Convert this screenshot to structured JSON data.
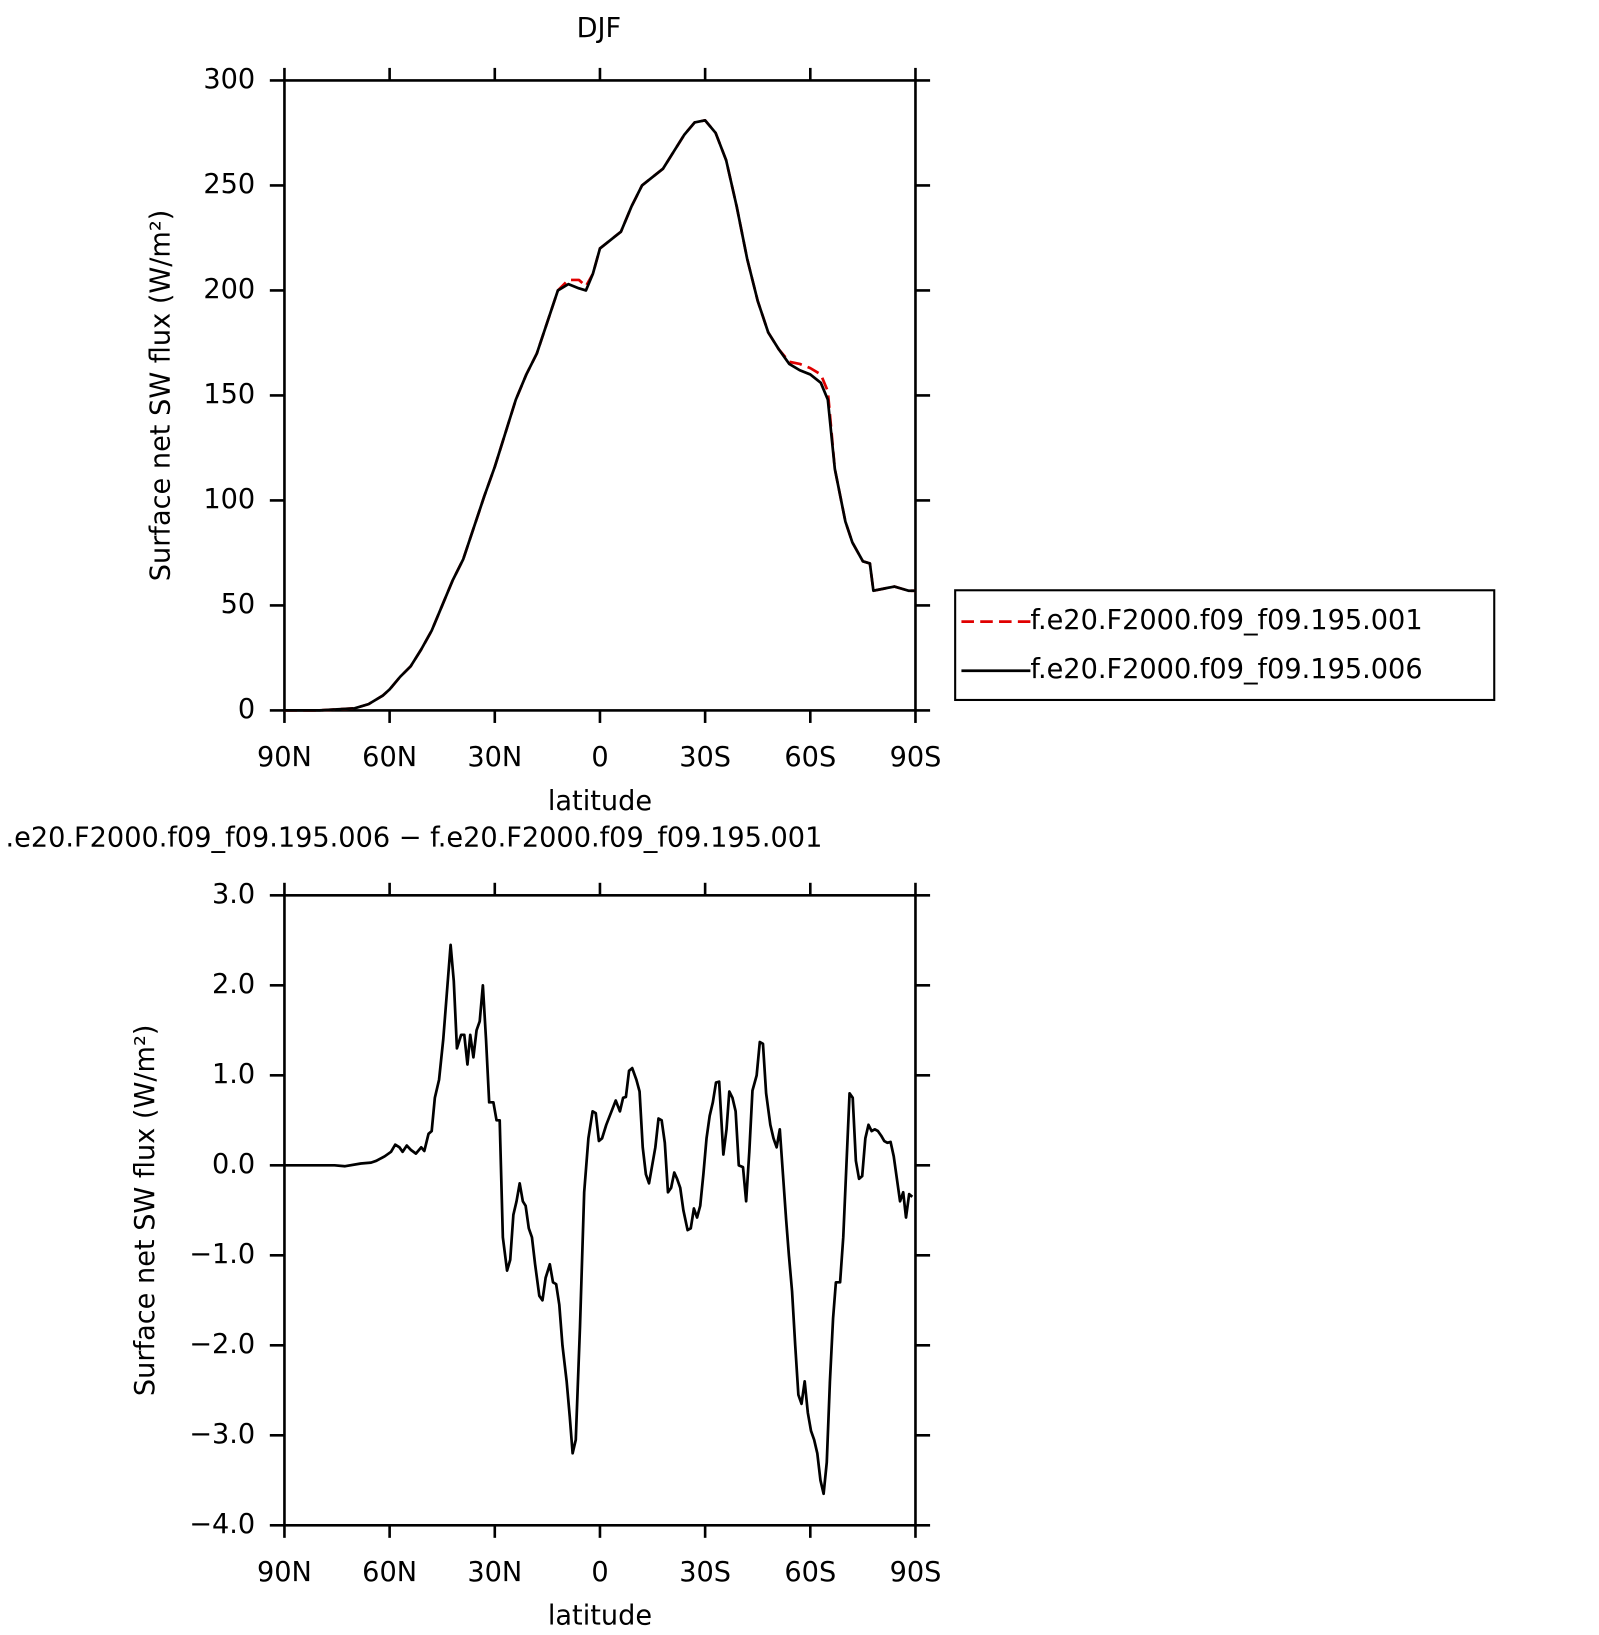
{
  "chart_data": [
    {
      "type": "line",
      "title": "DJF",
      "xlabel": "latitude",
      "ylabel": "Surface net SW flux (W/m²)",
      "xlim": [
        90,
        -90
      ],
      "xticks": [
        {
          "value": 90,
          "label": "90N"
        },
        {
          "value": 60,
          "label": "60N"
        },
        {
          "value": 30,
          "label": "30N"
        },
        0,
        {
          "value": -30,
          "label": "30S"
        },
        {
          "value": -60,
          "label": "60S"
        },
        {
          "value": -90,
          "label": "90S"
        }
      ],
      "ylim": [
        0,
        300
      ],
      "yticks": [
        0,
        50,
        100,
        150,
        200,
        250,
        300
      ],
      "legend": "outside-right",
      "x": [
        90,
        80,
        70,
        66,
        62,
        60,
        57,
        54,
        51,
        48,
        45,
        42,
        39,
        36,
        33,
        30,
        27,
        24,
        21,
        18,
        15,
        12,
        9,
        6,
        4,
        2,
        0,
        -3,
        -6,
        -9,
        -12,
        -15,
        -18,
        -21,
        -24,
        -27,
        -30,
        -33,
        -36,
        -39,
        -42,
        -45,
        -48,
        -51,
        -54,
        -57,
        -60,
        -63,
        -65,
        -67,
        -70,
        -72,
        -75,
        -77,
        -78,
        -81,
        -84,
        -86,
        -88,
        -90
      ],
      "series": [
        {
          "name": "f.e20.F2000.f09_f09.195.001",
          "color": "#e00000",
          "dash": true,
          "values": [
            0,
            0,
            1,
            3,
            7,
            10,
            16,
            21,
            29,
            38,
            50,
            62,
            72,
            87,
            102,
            116,
            132,
            148,
            160,
            170,
            185,
            200,
            205,
            205,
            202,
            208,
            220,
            224,
            228,
            240,
            250,
            254,
            258,
            266,
            274,
            280,
            281,
            275,
            262,
            240,
            215,
            195,
            180,
            172,
            166,
            165,
            163,
            160,
            152,
            115,
            90,
            80,
            71,
            70,
            57,
            58,
            59,
            58,
            57,
            57
          ]
        },
        {
          "name": "f.e20.F2000.f09_f09.195.006",
          "color": "#000000",
          "dash": false,
          "values": [
            0,
            0,
            1,
            3,
            7,
            10,
            16,
            21,
            29,
            38,
            50,
            62,
            72,
            87,
            102,
            116,
            132,
            148,
            160,
            170,
            185,
            200,
            203,
            201,
            200,
            208,
            220,
            224,
            228,
            240,
            250,
            254,
            258,
            266,
            274,
            280,
            281,
            275,
            262,
            240,
            215,
            195,
            180,
            172,
            165,
            162,
            160,
            156,
            148,
            115,
            90,
            80,
            71,
            70,
            57,
            58,
            59,
            58,
            57,
            57
          ]
        }
      ]
    },
    {
      "type": "line",
      "title": ".e20.F2000.f09_f09.195.006 − f.e20.F2000.f09_f09.195.001",
      "xlabel": "latitude",
      "ylabel": "Surface net SW flux (W/m²)",
      "xlim": [
        90,
        -90
      ],
      "xticks": [
        {
          "value": 90,
          "label": "90N"
        },
        {
          "value": 60,
          "label": "60N"
        },
        {
          "value": 30,
          "label": "30N"
        },
        0,
        {
          "value": -30,
          "label": "30S"
        },
        {
          "value": -60,
          "label": "60S"
        },
        {
          "value": -90,
          "label": "90S"
        }
      ],
      "ylim": [
        -4,
        3
      ],
      "yticks": [
        {
          "value": -4,
          "label": "−4.0"
        },
        {
          "value": -3,
          "label": "−3.0"
        },
        {
          "value": -2,
          "label": "−2.0"
        },
        {
          "value": -1,
          "label": "−1.0"
        },
        {
          "value": 0,
          "label": "0.0"
        },
        {
          "value": 1,
          "label": "1.0"
        },
        {
          "value": 2,
          "label": "2.0"
        },
        {
          "value": 3,
          "label": "3.0"
        }
      ],
      "x": [
        90.0,
        75.7,
        72.7,
        68.2,
        65.3,
        63.8,
        61.4,
        59.6,
        58.4,
        57.2,
        56.3,
        55.1,
        53.9,
        52.5,
        51.0,
        50.1,
        48.9,
        48.0,
        47.1,
        45.9,
        44.7,
        43.5,
        42.6,
        41.7,
        40.8,
        39.6,
        38.7,
        37.8,
        37.0,
        36.1,
        35.2,
        34.3,
        33.4,
        32.5,
        31.6,
        30.4,
        29.5,
        28.6,
        27.7,
        26.5,
        25.6,
        24.7,
        23.8,
        22.9,
        22.0,
        21.2,
        20.3,
        19.4,
        18.5,
        17.3,
        16.4,
        15.5,
        14.3,
        13.4,
        12.5,
        11.6,
        10.7,
        9.5,
        8.6,
        7.8,
        6.9,
        5.7,
        4.5,
        3.3,
        2.1,
        1.2,
        0.3,
        -0.6,
        -1.8,
        -3.3,
        -4.5,
        -5.7,
        -6.6,
        -7.4,
        -8.3,
        -9.2,
        -10.4,
        -11.3,
        -12.2,
        -13.1,
        -14.0,
        -14.9,
        -15.8,
        -16.7,
        -17.6,
        -18.5,
        -19.4,
        -20.3,
        -21.2,
        -22.0,
        -22.9,
        -23.8,
        -25.0,
        -25.9,
        -26.8,
        -27.7,
        -28.6,
        -29.5,
        -30.4,
        -31.3,
        -32.2,
        -33.1,
        -34.0,
        -35.2,
        -36.1,
        -36.9,
        -37.8,
        -38.7,
        -39.6,
        -40.8,
        -41.7,
        -42.6,
        -43.5,
        -44.7,
        -45.6,
        -46.5,
        -47.4,
        -48.6,
        -49.5,
        -50.4,
        -51.3,
        -52.2,
        -53.1,
        -53.9,
        -54.8,
        -55.7,
        -56.6,
        -57.5,
        -58.4,
        -59.3,
        -60.2,
        -61.1,
        -62.0,
        -62.9,
        -63.8,
        -64.7,
        -65.6,
        -66.5,
        -67.3,
        -68.5,
        -69.4,
        -70.3,
        -71.2,
        -72.1,
        -73.0,
        -73.9,
        -74.8,
        -75.7,
        -76.6,
        -77.5,
        -78.4,
        -79.3,
        -80.2,
        -81.1,
        -82.0,
        -82.9,
        -83.8,
        -84.7,
        -85.6,
        -86.5,
        -87.3,
        -88.2,
        -89.1
      ],
      "series": [
        {
          "color": "#000000",
          "values": [
            0,
            0,
            -0.01,
            0.02,
            0.03,
            0.05,
            0.1,
            0.15,
            0.23,
            0.2,
            0.15,
            0.22,
            0.17,
            0.13,
            0.2,
            0.16,
            0.35,
            0.38,
            0.75,
            0.95,
            1.4,
            2.0,
            2.45,
            2.05,
            1.3,
            1.45,
            1.45,
            1.12,
            1.45,
            1.2,
            1.5,
            1.6,
            2.0,
            1.4,
            0.7,
            0.7,
            0.5,
            0.5,
            -0.8,
            -1.17,
            -1.05,
            -0.55,
            -0.4,
            -0.2,
            -0.4,
            -0.45,
            -0.7,
            -0.8,
            -1.1,
            -1.45,
            -1.5,
            -1.25,
            -1.1,
            -1.3,
            -1.32,
            -1.55,
            -2.0,
            -2.4,
            -2.8,
            -3.2,
            -3.05,
            -1.8,
            -0.3,
            0.3,
            0.6,
            0.58,
            0.27,
            0.3,
            0.45,
            0.6,
            0.72,
            0.6,
            0.75,
            0.76,
            1.05,
            1.08,
            0.95,
            0.82,
            0.2,
            -0.1,
            -0.2,
            0.0,
            0.2,
            0.52,
            0.5,
            0.25,
            -0.3,
            -0.25,
            -0.08,
            -0.15,
            -0.25,
            -0.5,
            -0.72,
            -0.7,
            -0.48,
            -0.58,
            -0.45,
            -0.1,
            0.3,
            0.55,
            0.7,
            0.92,
            0.93,
            0.12,
            0.4,
            0.82,
            0.75,
            0.6,
            0.0,
            -0.02,
            -0.4,
            0.15,
            0.83,
            1.0,
            1.37,
            1.35,
            0.8,
            0.45,
            0.3,
            0.2,
            0.4,
            -0.1,
            -0.6,
            -1.0,
            -1.4,
            -2.0,
            -2.55,
            -2.65,
            -2.4,
            -2.75,
            -2.95,
            -3.05,
            -3.2,
            -3.5,
            -3.65,
            -3.3,
            -2.4,
            -1.7,
            -1.3,
            -1.3,
            -0.8,
            0.0,
            0.8,
            0.75,
            0.05,
            -0.15,
            -0.12,
            0.3,
            0.45,
            0.38,
            0.4,
            0.38,
            0.33,
            0.27,
            0.25,
            0.26,
            0.1,
            -0.15,
            -0.4,
            -0.3,
            -0.58,
            -0.32,
            -0.35
          ]
        }
      ]
    }
  ]
}
